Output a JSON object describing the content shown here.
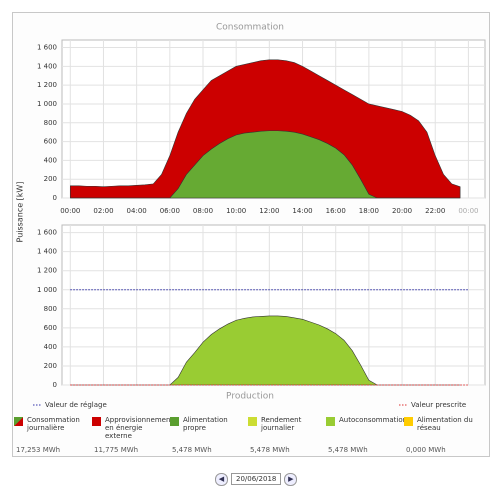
{
  "y_axis_label": "Puissance [kW]",
  "date": "20/06/2018",
  "chart_data": [
    {
      "type": "area",
      "title": "Consommation",
      "x": [
        0,
        0.5,
        1,
        1.5,
        2,
        2.5,
        3,
        3.5,
        4,
        4.5,
        5,
        5.5,
        6,
        6.5,
        7,
        7.5,
        8,
        8.5,
        9,
        9.5,
        10,
        10.5,
        11,
        11.5,
        12,
        12.5,
        13,
        13.5,
        14,
        14.5,
        15,
        15.5,
        16,
        16.5,
        17,
        17.5,
        18,
        18.5,
        19,
        19.5,
        20,
        20.5,
        21,
        21.5,
        22,
        22.5,
        23,
        23.5
      ],
      "xlim": [
        -0.5,
        25
      ],
      "xticks": [
        {
          "value": 0,
          "label": "00:00"
        },
        {
          "value": 2,
          "label": "02:00"
        },
        {
          "value": 4,
          "label": "04:00"
        },
        {
          "value": 6,
          "label": "06:00"
        },
        {
          "value": 8,
          "label": "08:00"
        },
        {
          "value": 10,
          "label": "10:00"
        },
        {
          "value": 12,
          "label": "12:00"
        },
        {
          "value": 14,
          "label": "14:00"
        },
        {
          "value": 16,
          "label": "16:00"
        },
        {
          "value": 18,
          "label": "18:00"
        },
        {
          "value": 20,
          "label": "20:00"
        },
        {
          "value": 22,
          "label": "22:00"
        },
        {
          "value": 24,
          "label": "00:00"
        }
      ],
      "ylim": [
        0,
        1680
      ],
      "yticks": [
        0,
        200,
        400,
        600,
        800,
        {
          "value": 1000,
          "label": "1 000"
        },
        {
          "value": 1200,
          "label": "1 200"
        },
        {
          "value": 1400,
          "label": "1 400"
        },
        {
          "value": 1600,
          "label": "1 600"
        }
      ],
      "grid": true,
      "series": [
        {
          "color": "#cc0000",
          "values": [
            130,
            130,
            125,
            125,
            120,
            125,
            130,
            130,
            135,
            140,
            150,
            250,
            450,
            700,
            900,
            1050,
            1150,
            1250,
            1300,
            1350,
            1400,
            1420,
            1440,
            1460,
            1470,
            1470,
            1460,
            1440,
            1400,
            1350,
            1300,
            1250,
            1200,
            1150,
            1100,
            1050,
            1000,
            980,
            960,
            940,
            920,
            880,
            820,
            700,
            450,
            250,
            150,
            120
          ]
        },
        {
          "color": "#66aa33",
          "values": [
            0,
            0,
            0,
            0,
            0,
            0,
            0,
            0,
            0,
            0,
            0,
            0,
            0,
            100,
            250,
            350,
            450,
            520,
            580,
            630,
            670,
            690,
            700,
            710,
            715,
            715,
            710,
            700,
            680,
            650,
            620,
            580,
            530,
            460,
            350,
            200,
            40,
            0,
            0,
            0,
            0,
            0,
            0,
            0,
            0,
            0,
            0,
            0
          ]
        }
      ]
    },
    {
      "type": "area",
      "title": "Production",
      "x": [
        0,
        0.5,
        1,
        1.5,
        2,
        2.5,
        3,
        3.5,
        4,
        4.5,
        5,
        5.5,
        6,
        6.5,
        7,
        7.5,
        8,
        8.5,
        9,
        9.5,
        10,
        10.5,
        11,
        11.5,
        12,
        12.5,
        13,
        13.5,
        14,
        14.5,
        15,
        15.5,
        16,
        16.5,
        17,
        17.5,
        18,
        18.5,
        19,
        19.5,
        20,
        20.5,
        21,
        21.5,
        22,
        22.5,
        23,
        23.5
      ],
      "xlim": [
        -0.5,
        25
      ],
      "xticks": [
        0,
        2,
        4,
        6,
        8,
        10,
        12,
        14,
        16,
        18,
        20,
        22,
        24
      ],
      "ylim": [
        0,
        1680
      ],
      "yticks": [
        0,
        200,
        400,
        600,
        800,
        {
          "value": 1000,
          "label": "1 000"
        },
        {
          "value": 1200,
          "label": "1 200"
        },
        {
          "value": 1400,
          "label": "1 400"
        },
        {
          "value": 1600,
          "label": "1 600"
        }
      ],
      "grid": true,
      "series": [
        {
          "color": "#99cc33",
          "values": [
            0,
            0,
            0,
            0,
            0,
            0,
            0,
            0,
            0,
            0,
            0,
            0,
            0,
            80,
            240,
            340,
            450,
            530,
            590,
            640,
            680,
            700,
            715,
            720,
            725,
            725,
            720,
            705,
            690,
            660,
            630,
            590,
            540,
            470,
            360,
            210,
            50,
            0,
            0,
            0,
            0,
            0,
            0,
            0,
            0,
            0,
            0,
            0
          ]
        },
        {
          "type": "line",
          "name": "Valeur de réglage",
          "color": "#3333aa",
          "x": [
            0,
            24
          ],
          "values": [
            1000,
            1000
          ]
        },
        {
          "type": "line",
          "name": "Valeur prescrite",
          "color": "#dd3333",
          "x": [
            0,
            24
          ],
          "values": [
            0,
            0
          ]
        }
      ]
    }
  ],
  "legend": [
    {
      "name": "Consommation journalière",
      "value": "17,253 MWh",
      "color": "#cc0000"
    },
    {
      "name": "Approvisionnement en énergie externe",
      "value": "11,775 MWh",
      "color": "#cc0000"
    },
    {
      "name": "Alimentation propre",
      "value": "5,478 MWh",
      "color": "#5a9e2f"
    },
    {
      "name": "Rendement journalier",
      "value": "5,478 MWh",
      "color": "#ccdd33"
    },
    {
      "name": "Autoconsommation",
      "value": "5,478 MWh",
      "color": "#99cc33"
    },
    {
      "name": "Alimentation du réseau",
      "value": "0,000 MWh",
      "color": "#ffcc00"
    }
  ]
}
